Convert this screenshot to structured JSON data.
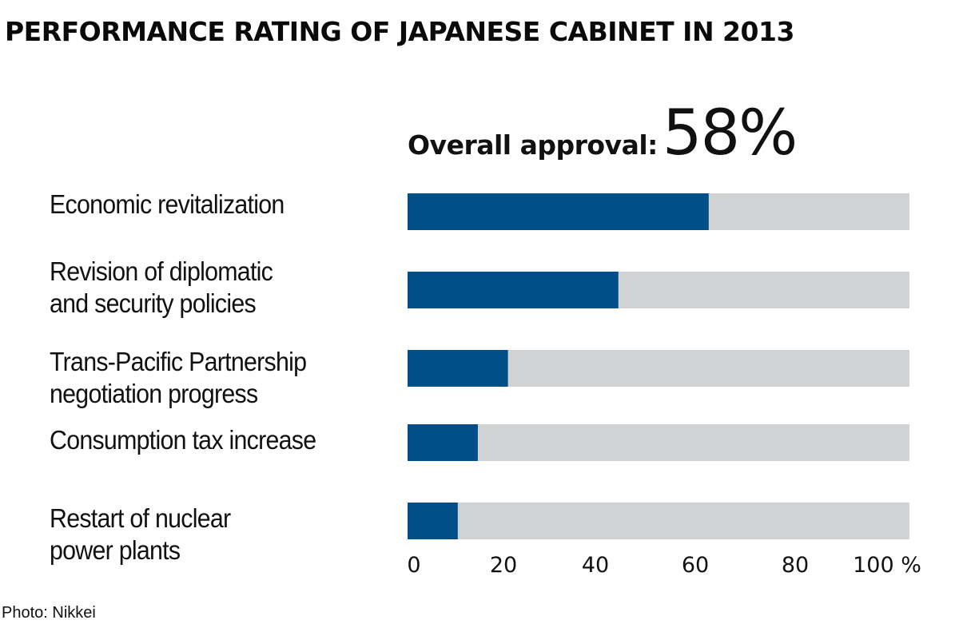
{
  "chart_data": {
    "type": "bar",
    "orientation": "horizontal",
    "title": "PERFORMANCE RATING OF JAPANESE CABINET IN 2013",
    "subtitle_label": "Overall approval:",
    "subtitle_value": "58%",
    "categories": [
      [
        "Economic revitalization"
      ],
      [
        "Revision of diplomatic",
        "and security policies"
      ],
      [
        "Trans-Pacific Partnership",
        "negotiation progress"
      ],
      [
        "Consumption tax increase"
      ],
      [
        "Restart of nuclear",
        "power plants"
      ]
    ],
    "values": [
      60,
      42,
      20,
      14,
      10
    ],
    "unit": "%",
    "xlim": [
      0,
      100
    ],
    "ticks": [
      0,
      20,
      40,
      60,
      80,
      100
    ],
    "tick_labels": [
      "0",
      "20",
      "40",
      "60",
      "80",
      "100 %"
    ],
    "xlabel": "",
    "ylabel": "",
    "grid": false,
    "legend": "none",
    "colors": {
      "value": "#004f88",
      "remainder": "#d1d2d4"
    }
  },
  "credit": "Photo: Nikkei"
}
